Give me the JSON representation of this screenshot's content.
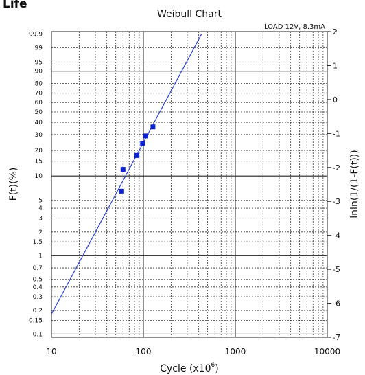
{
  "page": {
    "heading": "Life"
  },
  "chart_data": {
    "type": "scatter",
    "title": "Weibull Chart",
    "annotation": "LOAD 12V, 8.3mA",
    "xlabel_main": "Cycle (x10",
    "xlabel_sup": "6",
    "xlabel_close": ")",
    "ylabel_left": "F(t)(%)",
    "ylabel_right": "lnln(1/(1-F(t)))",
    "x_scale": "log",
    "xlim": [
      10,
      10000
    ],
    "x_ticks": [
      {
        "value": 10,
        "label": "10"
      },
      {
        "value": 100,
        "label": "100"
      },
      {
        "value": 1000,
        "label": "1000"
      },
      {
        "value": 10000,
        "label": "10000"
      }
    ],
    "y_scale": "weibull",
    "ylim_right": [
      -7,
      2
    ],
    "right_ticks": [
      {
        "value": 2,
        "label": "2"
      },
      {
        "value": 1,
        "label": "1"
      },
      {
        "value": 0,
        "label": "0"
      },
      {
        "value": -1,
        "label": "-1"
      },
      {
        "value": -2,
        "label": "-2"
      },
      {
        "value": -3,
        "label": "-3"
      },
      {
        "value": -4,
        "label": "-4"
      },
      {
        "value": -5,
        "label": "-5"
      },
      {
        "value": -6,
        "label": "-6"
      },
      {
        "value": -7,
        "label": "-7"
      }
    ],
    "left_ticks": [
      {
        "value": 99.9,
        "label": "99.9"
      },
      {
        "value": 99,
        "label": "99"
      },
      {
        "value": 95,
        "label": "95"
      },
      {
        "value": 90,
        "label": "90"
      },
      {
        "value": 80,
        "label": "80"
      },
      {
        "value": 70,
        "label": "70"
      },
      {
        "value": 60,
        "label": "60"
      },
      {
        "value": 50,
        "label": "50"
      },
      {
        "value": 40,
        "label": "40"
      },
      {
        "value": 30,
        "label": "30"
      },
      {
        "value": 20,
        "label": "20"
      },
      {
        "value": 15,
        "label": "15"
      },
      {
        "value": 10,
        "label": "10"
      },
      {
        "value": 5,
        "label": "5"
      },
      {
        "value": 4,
        "label": "4"
      },
      {
        "value": 3,
        "label": "3"
      },
      {
        "value": 2,
        "label": "2"
      },
      {
        "value": 1.5,
        "label": "1.5"
      },
      {
        "value": 1,
        "label": "1"
      },
      {
        "value": 0.7,
        "label": "0.7"
      },
      {
        "value": 0.5,
        "label": "0.5"
      },
      {
        "value": 0.4,
        "label": "0.4"
      },
      {
        "value": 0.3,
        "label": "0.3"
      },
      {
        "value": 0.2,
        "label": "0.2"
      },
      {
        "value": 0.15,
        "label": "0.15"
      },
      {
        "value": 0.1,
        "label": "0.1"
      }
    ],
    "major_grid_left": [
      0.1,
      1,
      10,
      90
    ],
    "grid": true,
    "series": [
      {
        "type": "scatter",
        "color": "#0b22d6",
        "points": [
          {
            "x": 58,
            "y": 6.5
          },
          {
            "x": 60,
            "y": 12
          },
          {
            "x": 85,
            "y": 17.5
          },
          {
            "x": 98,
            "y": 24
          },
          {
            "x": 106,
            "y": 29
          },
          {
            "x": 127,
            "y": 36
          }
        ]
      },
      {
        "type": "line",
        "color": "#2b3fd0",
        "points": [
          {
            "x": 10,
            "y": 0.18
          },
          {
            "x": 430,
            "y": 99.9
          }
        ]
      }
    ]
  }
}
